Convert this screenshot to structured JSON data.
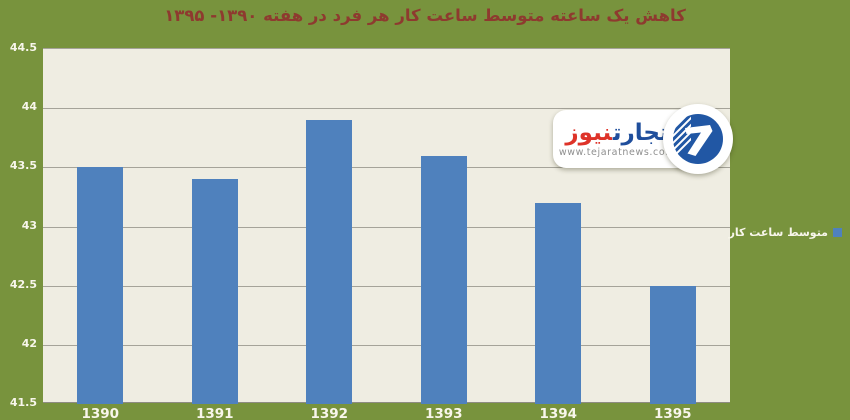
{
  "title": "کاهش یک ساعته متوسط ساعت کار هر فرد در هفته ۱۳۹۰- ۱۳۹۵",
  "legend": {
    "label": "متوسط ساعت کار"
  },
  "watermark": {
    "brand_blue": "تجارت",
    "brand_red": "نیوز",
    "url": "www.tejaratnews.com"
  },
  "colors": {
    "background_green": "#78933D",
    "plot_beige": "#EFEDE2",
    "bar_blue": "#4F81BD",
    "title_red": "#8E3A2F",
    "gridline_gray": "#A5A399",
    "tick_text": "#F8F6EB"
  },
  "chart_data": {
    "type": "bar",
    "title": "کاهش یک ساعته متوسط ساعت کار هر فرد در هفته ۱۳۹۰- ۱۳۹۵",
    "categories": [
      "1390",
      "1391",
      "1392",
      "1393",
      "1394",
      "1395"
    ],
    "series": [
      {
        "name": "متوسط ساعت کار",
        "values": [
          43.5,
          43.4,
          43.9,
          43.6,
          43.2,
          42.5
        ]
      }
    ],
    "xlabel": "",
    "ylabel": "",
    "ylim": [
      41.5,
      44.5
    ],
    "yticks": [
      44.5,
      44,
      43.5,
      43,
      42.5,
      42,
      41.5
    ],
    "grid": true,
    "legend_position": "right",
    "bar_color": "#4F81BD"
  }
}
